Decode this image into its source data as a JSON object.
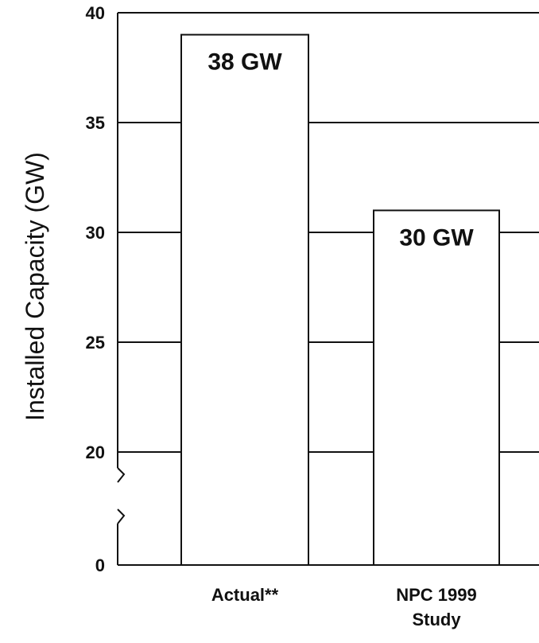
{
  "chart_data": {
    "type": "bar",
    "title": "",
    "xlabel": "",
    "ylabel": "Installed Capacity (GW)",
    "ylim": [
      0,
      40
    ],
    "axis_break": true,
    "grid": "horizontal",
    "yticks": [
      "0",
      "20",
      "25",
      "30",
      "35",
      "40"
    ],
    "categories": [
      "Actual**",
      "NPC 1999 Study"
    ],
    "category_lines": [
      [
        "Actual**"
      ],
      [
        "NPC 1999",
        "Study"
      ]
    ],
    "values": [
      38,
      30
    ],
    "data_labels": [
      "38 GW",
      "30 GW"
    ]
  }
}
